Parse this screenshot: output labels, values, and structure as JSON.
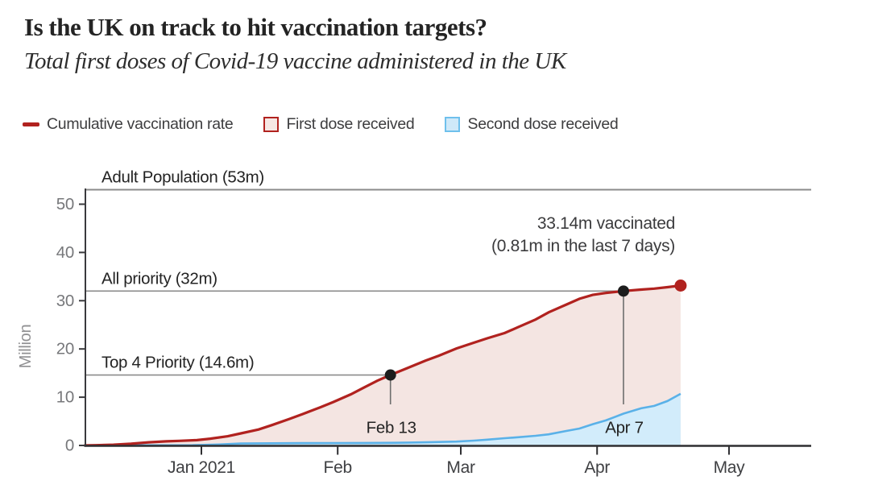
{
  "header": {
    "title": "Is the UK on track to hit vaccination targets?",
    "subtitle": "Total first doses of Covid-19 vaccine administered in the UK"
  },
  "legend": [
    {
      "label": "Cumulative vaccination rate"
    },
    {
      "label": "First dose received"
    },
    {
      "label": "Second dose received"
    }
  ],
  "colors": {
    "line_red": "#b1221f",
    "fill_pink": "#f4e5e2",
    "line_blue": "#5ab1e8",
    "fill_blue": "#d2ecfb",
    "axis_dark": "#2e2e31",
    "ref_gray": "#8b8b8b",
    "marker_black": "#1d1d1d",
    "tick_text_gray": "#77787b",
    "label_dark": "#232323"
  },
  "chart_data": {
    "type": "area",
    "title": "Total first doses of Covid-19 vaccine administered in the UK",
    "ylabel": "Million",
    "ylim": [
      0,
      53
    ],
    "grid": false,
    "legend_position": "top",
    "y_axis": {
      "label": "Million",
      "ticks": [
        0,
        10,
        20,
        30,
        40,
        50
      ]
    },
    "x_axis": {
      "ticks": [
        {
          "date": "2021-01-01",
          "label": "Jan 2021"
        },
        {
          "date": "2021-02-01",
          "label": "Feb"
        },
        {
          "date": "2021-03-01",
          "label": "Mar"
        },
        {
          "date": "2021-04-01",
          "label": "Apr"
        },
        {
          "date": "2021-05-01",
          "label": "May"
        }
      ]
    },
    "reference_lines": [
      {
        "label": "Adult Population (53m)",
        "value": 53,
        "end_date": null
      },
      {
        "label": "All priority (32m)",
        "value": 32,
        "end_date": "2021-04-07"
      },
      {
        "label": "Top 4 Priority (14.6m)",
        "value": 14.6,
        "end_date": "2021-02-13"
      }
    ],
    "markers": [
      {
        "date": "2021-02-13",
        "value": 14.6,
        "label": "Feb 13"
      },
      {
        "date": "2021-04-07",
        "value": 32,
        "label": "Apr 7"
      }
    ],
    "end_point": {
      "date": "2021-04-20",
      "value": 33.14
    },
    "annotation": {
      "lines": [
        "33.14m vaccinated",
        "(0.81m in the last 7 days)"
      ]
    },
    "series": [
      {
        "name": "Cumulative vaccination rate (first doses)",
        "points": [
          [
            "2020-12-05",
            0
          ],
          [
            "2020-12-08",
            0.05
          ],
          [
            "2020-12-12",
            0.15
          ],
          [
            "2020-12-16",
            0.35
          ],
          [
            "2020-12-20",
            0.65
          ],
          [
            "2020-12-24",
            0.85
          ],
          [
            "2020-12-27",
            0.95
          ],
          [
            "2020-12-31",
            1.1
          ],
          [
            "2021-01-03",
            1.4
          ],
          [
            "2021-01-07",
            1.9
          ],
          [
            "2021-01-10",
            2.5
          ],
          [
            "2021-01-14",
            3.3
          ],
          [
            "2021-01-17",
            4.2
          ],
          [
            "2021-01-21",
            5.5
          ],
          [
            "2021-01-24",
            6.5
          ],
          [
            "2021-01-28",
            7.9
          ],
          [
            "2021-01-31",
            9.0
          ],
          [
            "2021-02-04",
            10.6
          ],
          [
            "2021-02-07",
            12.0
          ],
          [
            "2021-02-10",
            13.4
          ],
          [
            "2021-02-13",
            14.6
          ],
          [
            "2021-02-17",
            16.1
          ],
          [
            "2021-02-21",
            17.6
          ],
          [
            "2021-02-24",
            18.6
          ],
          [
            "2021-02-28",
            20.1
          ],
          [
            "2021-03-04",
            21.3
          ],
          [
            "2021-03-07",
            22.2
          ],
          [
            "2021-03-11",
            23.3
          ],
          [
            "2021-03-14",
            24.5
          ],
          [
            "2021-03-18",
            26.1
          ],
          [
            "2021-03-21",
            27.6
          ],
          [
            "2021-03-25",
            29.2
          ],
          [
            "2021-03-28",
            30.4
          ],
          [
            "2021-03-31",
            31.2
          ],
          [
            "2021-04-03",
            31.6
          ],
          [
            "2021-04-07",
            32.0
          ],
          [
            "2021-04-11",
            32.3
          ],
          [
            "2021-04-14",
            32.5
          ],
          [
            "2021-04-17",
            32.8
          ],
          [
            "2021-04-20",
            33.14
          ]
        ]
      },
      {
        "name": "Second dose received",
        "points": [
          [
            "2020-12-05",
            0
          ],
          [
            "2020-12-30",
            0.05
          ],
          [
            "2021-01-05",
            0.2
          ],
          [
            "2021-01-10",
            0.4
          ],
          [
            "2021-01-17",
            0.45
          ],
          [
            "2021-01-24",
            0.48
          ],
          [
            "2021-01-31",
            0.5
          ],
          [
            "2021-02-07",
            0.52
          ],
          [
            "2021-02-14",
            0.55
          ],
          [
            "2021-02-21",
            0.65
          ],
          [
            "2021-02-28",
            0.8
          ],
          [
            "2021-03-04",
            1.0
          ],
          [
            "2021-03-07",
            1.2
          ],
          [
            "2021-03-11",
            1.5
          ],
          [
            "2021-03-14",
            1.7
          ],
          [
            "2021-03-18",
            2.0
          ],
          [
            "2021-03-21",
            2.3
          ],
          [
            "2021-03-25",
            3.0
          ],
          [
            "2021-03-28",
            3.5
          ],
          [
            "2021-03-31",
            4.4
          ],
          [
            "2021-04-03",
            5.2
          ],
          [
            "2021-04-07",
            6.6
          ],
          [
            "2021-04-11",
            7.7
          ],
          [
            "2021-04-14",
            8.2
          ],
          [
            "2021-04-17",
            9.2
          ],
          [
            "2021-04-20",
            10.7
          ]
        ]
      }
    ]
  }
}
